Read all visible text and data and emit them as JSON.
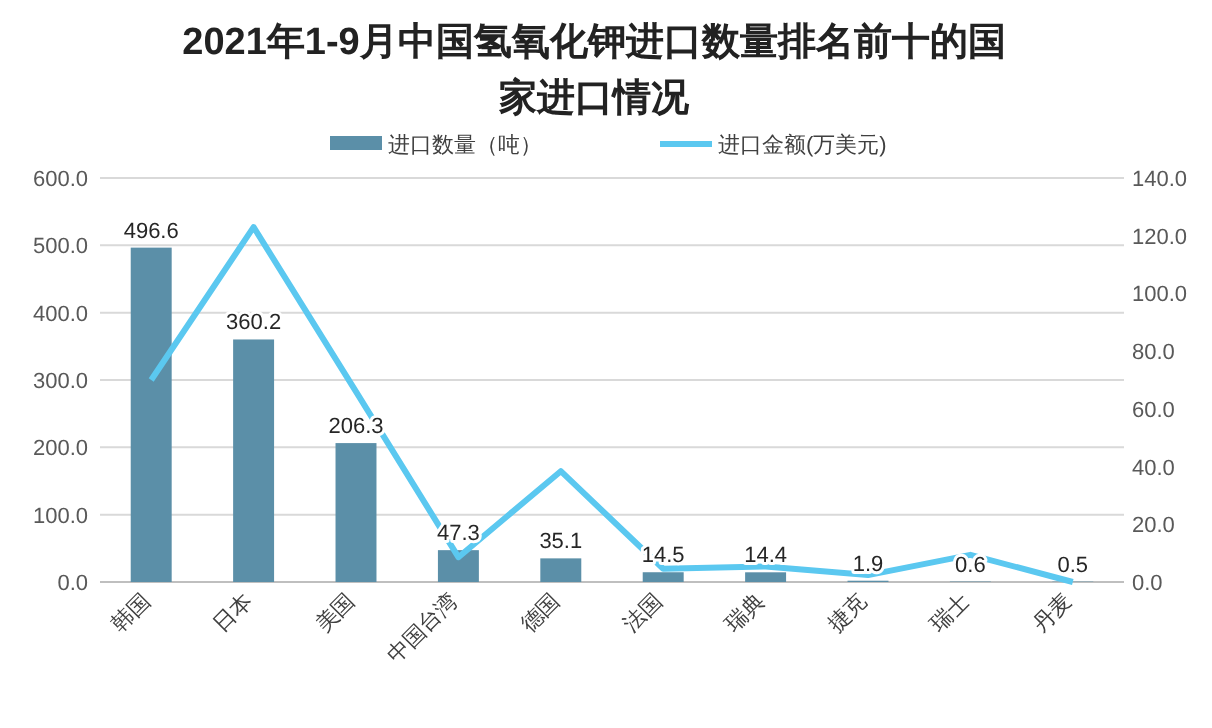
{
  "chart_data": {
    "type": "bar",
    "title": "2021年1-9月中国氢氧化钾进口数量排名前十的国家进口情况",
    "categories": [
      "韩国",
      "日本",
      "美国",
      "中国台湾",
      "德国",
      "法国",
      "瑞典",
      "捷克",
      "瑞士",
      "丹麦"
    ],
    "series": [
      {
        "name": "进口数量（吨）",
        "color": "#5b8fa8",
        "values": [
          496.6,
          360.2,
          206.3,
          47.3,
          35.1,
          14.5,
          14.4,
          1.9,
          0.6,
          0.5
        ],
        "value_labels": [
          "496.6",
          "360.2",
          "206.3",
          "47.3",
          "35.1",
          "14.5",
          "14.4",
          "1.9",
          "0.6",
          "0.5"
        ]
      },
      {
        "name": "进口金额(万美元)",
        "type": "line",
        "axis": "y2",
        "color": "#5bc8f0",
        "values": [
          70,
          123,
          66,
          8.6,
          38.4,
          4.6,
          5.4,
          2.4,
          9.4,
          0
        ]
      }
    ],
    "ylim": [
      0,
      600
    ],
    "yticks": [
      {
        "value": 0,
        "label": "0.0"
      },
      {
        "value": 100,
        "label": "100.0"
      },
      {
        "value": 200,
        "label": "200.0"
      },
      {
        "value": 300,
        "label": "300.0"
      },
      {
        "value": 400,
        "label": "400.0"
      },
      {
        "value": 500,
        "label": "500.0"
      },
      {
        "value": 600,
        "label": "600.0"
      }
    ],
    "y2lim": [
      0,
      140
    ],
    "y2ticks": [
      {
        "value": 0,
        "label": "0.0"
      },
      {
        "value": 20,
        "label": "20.0"
      },
      {
        "value": 40,
        "label": "40.0"
      },
      {
        "value": 60,
        "label": "60.0"
      },
      {
        "value": 80,
        "label": "80.0"
      },
      {
        "value": 100,
        "label": "100.0"
      },
      {
        "value": 120,
        "label": "120.0"
      },
      {
        "value": 140,
        "label": "140.0"
      }
    ],
    "grid": "y",
    "legend": "top",
    "marker": "none",
    "line_style": "solid"
  }
}
